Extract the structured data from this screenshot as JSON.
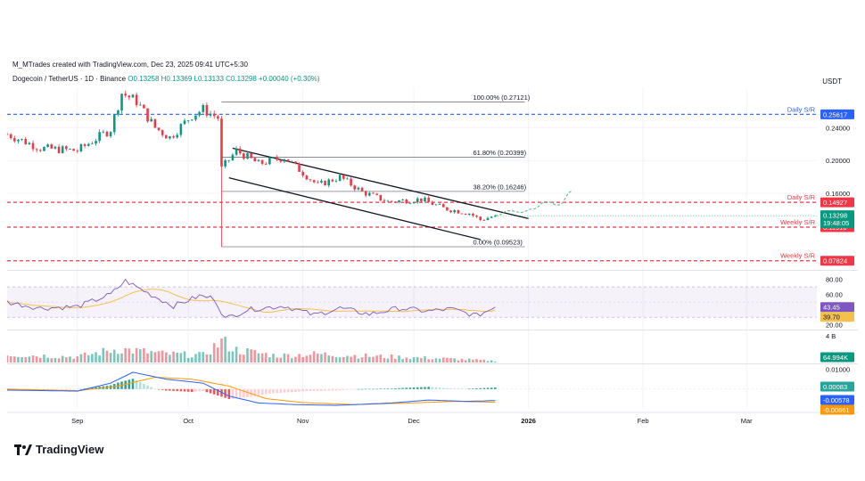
{
  "attribution": "M_MTrades created with TradingView.com, Dec 23, 2025 09:41 UTC+5:30",
  "legend": {
    "symbol": "Dogecoin / TetherUS · 1D · Binance",
    "ohlc": "O0.13258 H0.13369 L0.13133 C0.13298 +0.00040 (+0.30%)"
  },
  "currency": "USDT",
  "brand": "TradingView",
  "colors": {
    "up": "#089981",
    "down": "#f23645",
    "sr_red": "#f23645",
    "sr_blue": "#2962ff",
    "rsi_line": "#7e57c2",
    "rsi_ma": "#f5c04a",
    "macd_line": "#2962ff",
    "signal_line": "#ff9800",
    "projection": "#5bbf8f"
  },
  "chart_data": {
    "type": "candlestick",
    "symbol": "Dogecoin / TetherUS",
    "timeframe": "1D",
    "exchange": "Binance",
    "x_ticks": [
      "Sep",
      "Oct",
      "Nov",
      "Dec",
      "2026",
      "Feb",
      "Mar"
    ],
    "x_tick_dates": [
      "2025-09-01",
      "2025-10-01",
      "2025-11-01",
      "2025-12-01",
      "2026-01-01",
      "2026-02-01",
      "2026-03-01"
    ],
    "x_range": [
      "2025-08-13",
      "2026-03-20"
    ],
    "price_axis": {
      "ylim": [
        0.0682,
        0.289
      ],
      "ticks": [
        0.24,
        0.2,
        0.16
      ],
      "tick_labels": [
        "0.24000",
        "0.20000",
        "0.16000"
      ]
    },
    "key_points": [
      {
        "date": "2025-08-13",
        "price": 0.232
      },
      {
        "date": "2025-08-22",
        "price": 0.215
      },
      {
        "date": "2025-09-01",
        "price": 0.212
      },
      {
        "date": "2025-09-10",
        "price": 0.238
      },
      {
        "date": "2025-09-13",
        "price": 0.282
      },
      {
        "date": "2025-09-17",
        "price": 0.272
      },
      {
        "date": "2025-09-22",
        "price": 0.24
      },
      {
        "date": "2025-09-26",
        "price": 0.228
      },
      {
        "date": "2025-10-02",
        "price": 0.255
      },
      {
        "date": "2025-10-05",
        "price": 0.262
      },
      {
        "date": "2025-10-09",
        "price": 0.252
      },
      {
        "date": "2025-10-10",
        "price": 0.19
      },
      {
        "date": "2025-10-14",
        "price": 0.212
      },
      {
        "date": "2025-10-20",
        "price": 0.196
      },
      {
        "date": "2025-10-27",
        "price": 0.204
      },
      {
        "date": "2025-11-05",
        "price": 0.17
      },
      {
        "date": "2025-11-11",
        "price": 0.18
      },
      {
        "date": "2025-11-17",
        "price": 0.162
      },
      {
        "date": "2025-11-24",
        "price": 0.15
      },
      {
        "date": "2025-12-03",
        "price": 0.153
      },
      {
        "date": "2025-12-09",
        "price": 0.142
      },
      {
        "date": "2025-12-16",
        "price": 0.136
      },
      {
        "date": "2025-12-19",
        "price": 0.128
      },
      {
        "date": "2025-12-23",
        "price": 0.133
      }
    ],
    "spike_low": {
      "date": "2025-10-10",
      "price": 0.09523
    },
    "fib_levels": [
      {
        "label": "100.00% (0.27121)",
        "price": 0.27121
      },
      {
        "label": "61.80% (0.20399)",
        "price": 0.20399
      },
      {
        "label": "38.20% (0.16246)",
        "price": 0.16246
      },
      {
        "label": "0.00% (0.09523)",
        "price": 0.09523
      }
    ],
    "fib_range_dates": [
      "2025-10-10",
      "2025-12-31"
    ],
    "sr_levels": [
      {
        "name": "Daily S/R",
        "price": 0.25617,
        "label": "0.25617",
        "color": "#2962ff"
      },
      {
        "name": "Daily S/R",
        "price": 0.14927,
        "label": "0.14927",
        "color": "#f23645"
      },
      {
        "name": "Weekly S/R",
        "price": 0.1191,
        "label": "0.11910",
        "color": "#f23645"
      },
      {
        "name": "Weekly S/R",
        "price": 0.07824,
        "label": "0.07824",
        "color": "#f23645"
      }
    ],
    "channel": {
      "upper": [
        {
          "date": "2025-10-13",
          "price": 0.215
        },
        {
          "date": "2026-01-01",
          "price": 0.1295
        }
      ],
      "lower": [
        {
          "date": "2025-10-12",
          "price": 0.179
        },
        {
          "date": "2025-12-19",
          "price": 0.104
        }
      ]
    },
    "projection": [
      {
        "date": "2025-12-23",
        "price": 0.133
      },
      {
        "date": "2025-12-27",
        "price": 0.139
      },
      {
        "date": "2025-12-30",
        "price": 0.137
      },
      {
        "date": "2026-01-02",
        "price": 0.141
      },
      {
        "date": "2026-01-06",
        "price": 0.15
      },
      {
        "date": "2026-01-09",
        "price": 0.146
      },
      {
        "date": "2026-01-13",
        "price": 0.163
      }
    ],
    "current_price": {
      "value": 0.13298,
      "label": "0.13298",
      "countdown": "19:48:05"
    },
    "rsi": {
      "ylim": [
        15,
        90
      ],
      "upper_band": 70,
      "lower_band": 30,
      "tick_labels": [
        "80.00",
        "60.00",
        "20.00"
      ],
      "ticks": [
        80,
        60,
        20
      ],
      "value": 43.45,
      "value_label": "43.45",
      "ma_value": 39.7,
      "ma_label": "39.70",
      "key_points": [
        {
          "date": "2025-08-13",
          "value": 50
        },
        {
          "date": "2025-08-22",
          "value": 42
        },
        {
          "date": "2025-09-01",
          "value": 44
        },
        {
          "date": "2025-09-10",
          "value": 60
        },
        {
          "date": "2025-09-14",
          "value": 78
        },
        {
          "date": "2025-09-20",
          "value": 62
        },
        {
          "date": "2025-09-27",
          "value": 45
        },
        {
          "date": "2025-10-04",
          "value": 58
        },
        {
          "date": "2025-10-08",
          "value": 55
        },
        {
          "date": "2025-10-11",
          "value": 28
        },
        {
          "date": "2025-10-17",
          "value": 40
        },
        {
          "date": "2025-10-27",
          "value": 45
        },
        {
          "date": "2025-11-04",
          "value": 33
        },
        {
          "date": "2025-11-11",
          "value": 42
        },
        {
          "date": "2025-11-19",
          "value": 34
        },
        {
          "date": "2025-11-27",
          "value": 42
        },
        {
          "date": "2025-12-05",
          "value": 38
        },
        {
          "date": "2025-12-11",
          "value": 41
        },
        {
          "date": "2025-12-18",
          "value": 32
        },
        {
          "date": "2025-12-23",
          "value": 43.45
        }
      ]
    },
    "volume": {
      "unit_label": "4 B",
      "value_label": "64.994K",
      "key_points": [
        {
          "date": "2025-08-13",
          "value": 1.4
        },
        {
          "date": "2025-09-01",
          "value": 1.0
        },
        {
          "date": "2025-09-12",
          "value": 2.4
        },
        {
          "date": "2025-09-16",
          "value": 2.1
        },
        {
          "date": "2025-09-25",
          "value": 1.5
        },
        {
          "date": "2025-10-05",
          "value": 1.3
        },
        {
          "date": "2025-10-10",
          "value": 3.7
        },
        {
          "date": "2025-10-14",
          "value": 2.2
        },
        {
          "date": "2025-10-25",
          "value": 1.2
        },
        {
          "date": "2025-11-05",
          "value": 1.5
        },
        {
          "date": "2025-11-20",
          "value": 1.1
        },
        {
          "date": "2025-12-05",
          "value": 0.8
        },
        {
          "date": "2025-12-23",
          "value": 0.3
        }
      ],
      "ylim": [
        0,
        4
      ]
    },
    "macd": {
      "ylim": [
        -0.0095,
        0.0125
      ],
      "tick_labels": [
        "0.01000"
      ],
      "ticks": [
        0.01
      ],
      "histogram_label": "0.00083",
      "macd_label": "-0.00578",
      "signal_label": "-0.00661",
      "macd_value": -0.00578,
      "signal_value": -0.00661,
      "histogram_value": 0.00083,
      "macd_points": [
        {
          "date": "2025-08-13",
          "value": -0.0005
        },
        {
          "date": "2025-09-01",
          "value": -0.001
        },
        {
          "date": "2025-09-10",
          "value": 0.003
        },
        {
          "date": "2025-09-16",
          "value": 0.0085
        },
        {
          "date": "2025-09-25",
          "value": 0.005
        },
        {
          "date": "2025-10-05",
          "value": 0.003
        },
        {
          "date": "2025-10-12",
          "value": -0.0035
        },
        {
          "date": "2025-10-20",
          "value": -0.007
        },
        {
          "date": "2025-10-30",
          "value": -0.0078
        },
        {
          "date": "2025-11-10",
          "value": -0.0082
        },
        {
          "date": "2025-11-25",
          "value": -0.007
        },
        {
          "date": "2025-12-05",
          "value": -0.0055
        },
        {
          "date": "2025-12-15",
          "value": -0.0062
        },
        {
          "date": "2025-12-23",
          "value": -0.00578
        }
      ],
      "signal_points": [
        {
          "date": "2025-08-13",
          "value": 0.0
        },
        {
          "date": "2025-09-01",
          "value": -0.0008
        },
        {
          "date": "2025-09-12",
          "value": 0.0015
        },
        {
          "date": "2025-09-22",
          "value": 0.006
        },
        {
          "date": "2025-10-02",
          "value": 0.005
        },
        {
          "date": "2025-10-12",
          "value": 0.0015
        },
        {
          "date": "2025-10-22",
          "value": -0.0048
        },
        {
          "date": "2025-11-01",
          "value": -0.0068
        },
        {
          "date": "2025-11-15",
          "value": -0.0078
        },
        {
          "date": "2025-11-30",
          "value": -0.007
        },
        {
          "date": "2025-12-12",
          "value": -0.0062
        },
        {
          "date": "2025-12-23",
          "value": -0.00661
        }
      ]
    }
  }
}
